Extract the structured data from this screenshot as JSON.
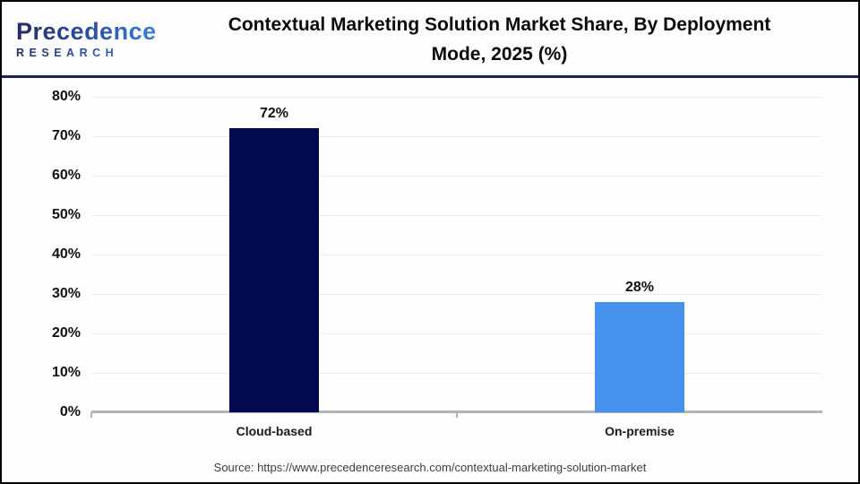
{
  "header": {
    "logo_name": "Precedence",
    "logo_subtitle": "RESEARCH",
    "title_line1": "Contextual Marketing Solution Market Share, By Deployment",
    "title_line2": "Mode, 2025 (%)"
  },
  "footer": {
    "source": "Source: https://www.precedenceresearch.com/contextual-marketing-solution-market"
  },
  "colors": {
    "cloud_based_bar": "#02094f",
    "on_premise_bar": "#4691ec",
    "header_divider": "#1b2456",
    "gridline": "#ededed",
    "axis_line": "#b3b3b3"
  },
  "chart_data": {
    "type": "bar",
    "title": "Contextual Marketing Solution Market Share, By Deployment Mode, 2025 (%)",
    "categories": [
      "Cloud-based",
      "On-premise"
    ],
    "values": [
      72,
      28
    ],
    "value_labels": [
      "72%",
      "28%"
    ],
    "bar_colors": [
      "#02094f",
      "#4691ec"
    ],
    "xlabel": "",
    "ylabel": "",
    "ylim": [
      0,
      80
    ],
    "ytick_values": [
      0,
      10,
      20,
      30,
      40,
      50,
      60,
      70,
      80
    ],
    "ytick_labels": [
      "0%",
      "10%",
      "20%",
      "30%",
      "40%",
      "50%",
      "60%",
      "70%",
      "80%"
    ],
    "grid": true,
    "legend": "none",
    "source": "Source: https://www.precedenceresearch.com/contextual-marketing-solution-market"
  }
}
